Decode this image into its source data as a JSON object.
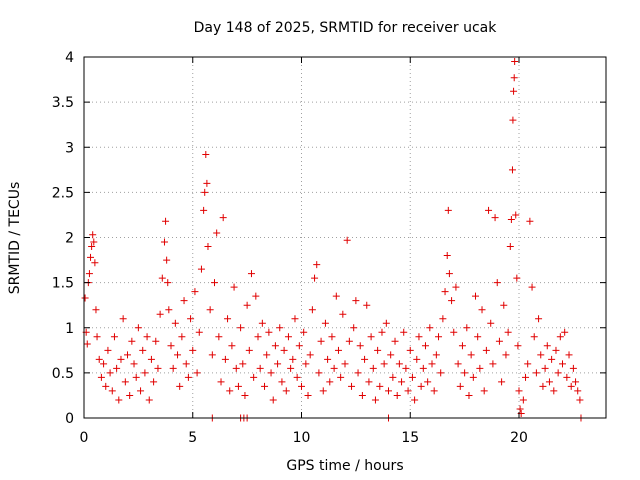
{
  "chart_data": {
    "type": "scatter",
    "title": "Day 148 of 2025, SRMTID for receiver ucak",
    "xlabel": "GPS time / hours",
    "ylabel": "SRMTID / TECUs",
    "xlim": [
      0,
      24
    ],
    "ylim": [
      0,
      4
    ],
    "xticks": [
      0,
      5,
      10,
      15,
      20
    ],
    "xtick_labels": [
      "0",
      "5",
      "10",
      "15",
      "20"
    ],
    "yticks": [
      0,
      0.5,
      1,
      1.5,
      2,
      2.5,
      3,
      3.5,
      4
    ],
    "ytick_labels": [
      "0",
      "0.5",
      "1",
      "1.5",
      "2",
      "2.5",
      "3",
      "3.5",
      "4"
    ],
    "grid": true,
    "marker": "+",
    "color": "#e00000",
    "series": [
      {
        "name": "SRMTID",
        "points": [
          [
            0.05,
            1.33
          ],
          [
            0.1,
            0.95
          ],
          [
            0.15,
            0.82
          ],
          [
            0.2,
            1.5
          ],
          [
            0.25,
            1.6
          ],
          [
            0.3,
            1.78
          ],
          [
            0.35,
            1.9
          ],
          [
            0.4,
            2.03
          ],
          [
            0.45,
            1.95
          ],
          [
            0.5,
            1.72
          ],
          [
            0.55,
            1.2
          ],
          [
            0.6,
            0.9
          ],
          [
            0.7,
            0.65
          ],
          [
            0.8,
            0.45
          ],
          [
            0.9,
            0.6
          ],
          [
            1.0,
            0.35
          ],
          [
            1.1,
            0.75
          ],
          [
            1.2,
            0.5
          ],
          [
            1.3,
            0.3
          ],
          [
            1.4,
            0.9
          ],
          [
            1.5,
            0.55
          ],
          [
            1.6,
            0.2
          ],
          [
            1.7,
            0.65
          ],
          [
            1.8,
            1.1
          ],
          [
            1.9,
            0.4
          ],
          [
            2.0,
            0.7
          ],
          [
            2.1,
            0.25
          ],
          [
            2.2,
            0.85
          ],
          [
            2.3,
            0.6
          ],
          [
            2.4,
            0.45
          ],
          [
            2.5,
            1.0
          ],
          [
            2.6,
            0.3
          ],
          [
            2.7,
            0.75
          ],
          [
            2.8,
            0.5
          ],
          [
            2.9,
            0.9
          ],
          [
            3.0,
            0.2
          ],
          [
            3.1,
            0.65
          ],
          [
            3.2,
            0.4
          ],
          [
            3.3,
            0.85
          ],
          [
            3.4,
            0.55
          ],
          [
            3.5,
            1.15
          ],
          [
            3.6,
            1.55
          ],
          [
            3.7,
            1.95
          ],
          [
            3.75,
            2.18
          ],
          [
            3.8,
            1.75
          ],
          [
            3.85,
            1.5
          ],
          [
            3.9,
            1.2
          ],
          [
            4.0,
            0.8
          ],
          [
            4.1,
            0.55
          ],
          [
            4.2,
            1.05
          ],
          [
            4.3,
            0.7
          ],
          [
            4.4,
            0.35
          ],
          [
            4.5,
            0.9
          ],
          [
            4.6,
            1.3
          ],
          [
            4.7,
            0.6
          ],
          [
            4.8,
            0.45
          ],
          [
            4.9,
            1.1
          ],
          [
            5.0,
            0.75
          ],
          [
            5.1,
            1.4
          ],
          [
            5.2,
            0.5
          ],
          [
            5.3,
            0.95
          ],
          [
            5.4,
            1.65
          ],
          [
            5.5,
            2.3
          ],
          [
            5.55,
            2.5
          ],
          [
            5.6,
            2.92
          ],
          [
            5.65,
            2.6
          ],
          [
            5.7,
            1.9
          ],
          [
            5.8,
            1.2
          ],
          [
            5.9,
            0.7
          ],
          [
            6.0,
            1.5
          ],
          [
            6.1,
            2.05
          ],
          [
            6.2,
            0.9
          ],
          [
            6.3,
            0.4
          ],
          [
            6.4,
            2.22
          ],
          [
            6.5,
            0.65
          ],
          [
            6.6,
            1.1
          ],
          [
            6.7,
            0.3
          ],
          [
            6.8,
            0.8
          ],
          [
            6.9,
            1.45
          ],
          [
            7.0,
            0.55
          ],
          [
            7.1,
            0.35
          ],
          [
            7.2,
            1.0
          ],
          [
            7.3,
            0.6
          ],
          [
            7.4,
            0.25
          ],
          [
            7.5,
            1.25
          ],
          [
            7.6,
            0.75
          ],
          [
            7.7,
            1.6
          ],
          [
            7.8,
            0.45
          ],
          [
            7.9,
            1.35
          ],
          [
            8.0,
            0.9
          ],
          [
            8.1,
            0.55
          ],
          [
            8.2,
            1.05
          ],
          [
            8.3,
            0.35
          ],
          [
            8.4,
            0.7
          ],
          [
            8.5,
            0.95
          ],
          [
            8.6,
            0.5
          ],
          [
            8.7,
            0.2
          ],
          [
            8.8,
            0.8
          ],
          [
            8.9,
            0.6
          ],
          [
            9.0,
            1.0
          ],
          [
            9.1,
            0.4
          ],
          [
            9.2,
            0.75
          ],
          [
            9.3,
            0.3
          ],
          [
            9.4,
            0.9
          ],
          [
            9.5,
            0.55
          ],
          [
            9.6,
            0.65
          ],
          [
            9.7,
            1.1
          ],
          [
            9.8,
            0.45
          ],
          [
            9.9,
            0.8
          ],
          [
            10.0,
            0.35
          ],
          [
            10.1,
            0.95
          ],
          [
            10.2,
            0.6
          ],
          [
            10.3,
            0.25
          ],
          [
            10.4,
            0.7
          ],
          [
            10.5,
            1.2
          ],
          [
            10.6,
            1.55
          ],
          [
            10.7,
            1.7
          ],
          [
            10.8,
            0.5
          ],
          [
            10.9,
            0.85
          ],
          [
            11.0,
            0.3
          ],
          [
            11.1,
            1.05
          ],
          [
            11.2,
            0.65
          ],
          [
            11.3,
            0.4
          ],
          [
            11.4,
            0.9
          ],
          [
            11.5,
            0.55
          ],
          [
            11.6,
            1.35
          ],
          [
            11.7,
            0.75
          ],
          [
            11.8,
            0.45
          ],
          [
            11.9,
            1.15
          ],
          [
            12.0,
            0.6
          ],
          [
            12.1,
            1.97
          ],
          [
            12.2,
            0.85
          ],
          [
            12.3,
            0.35
          ],
          [
            12.4,
            1.0
          ],
          [
            12.5,
            1.3
          ],
          [
            12.6,
            0.5
          ],
          [
            12.7,
            0.8
          ],
          [
            12.8,
            0.25
          ],
          [
            12.9,
            0.65
          ],
          [
            13.0,
            1.25
          ],
          [
            13.1,
            0.4
          ],
          [
            13.2,
            0.9
          ],
          [
            13.3,
            0.55
          ],
          [
            13.4,
            0.2
          ],
          [
            13.5,
            0.75
          ],
          [
            13.6,
            0.35
          ],
          [
            13.7,
            0.95
          ],
          [
            13.8,
            0.6
          ],
          [
            13.9,
            1.05
          ],
          [
            14.0,
            0.3
          ],
          [
            14.1,
            0.7
          ],
          [
            14.2,
            0.45
          ],
          [
            14.3,
            0.85
          ],
          [
            14.4,
            0.25
          ],
          [
            14.5,
            0.6
          ],
          [
            14.6,
            0.4
          ],
          [
            14.7,
            0.95
          ],
          [
            14.8,
            0.55
          ],
          [
            14.9,
            0.3
          ],
          [
            15.0,
            0.75
          ],
          [
            15.1,
            0.45
          ],
          [
            15.2,
            0.2
          ],
          [
            15.3,
            0.65
          ],
          [
            15.4,
            0.9
          ],
          [
            15.5,
            0.35
          ],
          [
            15.6,
            0.55
          ],
          [
            15.7,
            0.8
          ],
          [
            15.8,
            0.4
          ],
          [
            15.9,
            1.0
          ],
          [
            16.0,
            0.6
          ],
          [
            16.1,
            0.3
          ],
          [
            16.2,
            0.7
          ],
          [
            16.3,
            0.9
          ],
          [
            16.4,
            0.5
          ],
          [
            16.5,
            1.1
          ],
          [
            16.6,
            1.4
          ],
          [
            16.7,
            1.8
          ],
          [
            16.75,
            2.3
          ],
          [
            16.8,
            1.6
          ],
          [
            16.9,
            1.3
          ],
          [
            17.0,
            0.95
          ],
          [
            17.1,
            1.45
          ],
          [
            17.2,
            0.6
          ],
          [
            17.3,
            0.35
          ],
          [
            17.4,
            0.8
          ],
          [
            17.5,
            0.5
          ],
          [
            17.6,
            1.0
          ],
          [
            17.7,
            0.25
          ],
          [
            17.8,
            0.7
          ],
          [
            17.9,
            0.45
          ],
          [
            18.0,
            1.35
          ],
          [
            18.1,
            0.9
          ],
          [
            18.2,
            0.55
          ],
          [
            18.3,
            1.2
          ],
          [
            18.4,
            0.3
          ],
          [
            18.5,
            0.75
          ],
          [
            18.6,
            2.3
          ],
          [
            18.7,
            1.05
          ],
          [
            18.8,
            0.6
          ],
          [
            18.9,
            2.22
          ],
          [
            19.0,
            1.5
          ],
          [
            19.1,
            0.85
          ],
          [
            19.2,
            0.4
          ],
          [
            19.3,
            1.25
          ],
          [
            19.4,
            0.7
          ],
          [
            19.5,
            0.95
          ],
          [
            19.6,
            1.9
          ],
          [
            19.65,
            2.2
          ],
          [
            19.7,
            2.75
          ],
          [
            19.72,
            3.3
          ],
          [
            19.75,
            3.62
          ],
          [
            19.78,
            3.77
          ],
          [
            19.8,
            3.95
          ],
          [
            19.85,
            2.25
          ],
          [
            19.9,
            1.55
          ],
          [
            19.95,
            0.8
          ],
          [
            20.0,
            0.3
          ],
          [
            20.05,
            0.1
          ],
          [
            20.1,
            0.05
          ],
          [
            20.2,
            0.2
          ],
          [
            20.3,
            0.45
          ],
          [
            20.4,
            0.6
          ],
          [
            20.5,
            2.18
          ],
          [
            20.6,
            1.45
          ],
          [
            20.7,
            0.9
          ],
          [
            20.8,
            0.5
          ],
          [
            20.9,
            1.1
          ],
          [
            21.0,
            0.7
          ],
          [
            21.1,
            0.35
          ],
          [
            21.2,
            0.55
          ],
          [
            21.3,
            0.8
          ],
          [
            21.4,
            0.4
          ],
          [
            21.5,
            0.65
          ],
          [
            21.6,
            0.3
          ],
          [
            21.7,
            0.75
          ],
          [
            21.8,
            0.5
          ],
          [
            21.9,
            0.9
          ],
          [
            22.0,
            0.6
          ],
          [
            22.1,
            0.95
          ],
          [
            22.2,
            0.45
          ],
          [
            22.3,
            0.7
          ],
          [
            22.4,
            0.35
          ],
          [
            22.5,
            0.55
          ],
          [
            22.6,
            0.4
          ],
          [
            22.7,
            0.3
          ],
          [
            22.8,
            0.2
          ],
          [
            5.9,
            0.0
          ],
          [
            7.2,
            0.0
          ],
          [
            7.35,
            0.0
          ],
          [
            7.5,
            0.0
          ],
          [
            14.0,
            0.0
          ],
          [
            22.85,
            0.0
          ]
        ]
      }
    ]
  }
}
